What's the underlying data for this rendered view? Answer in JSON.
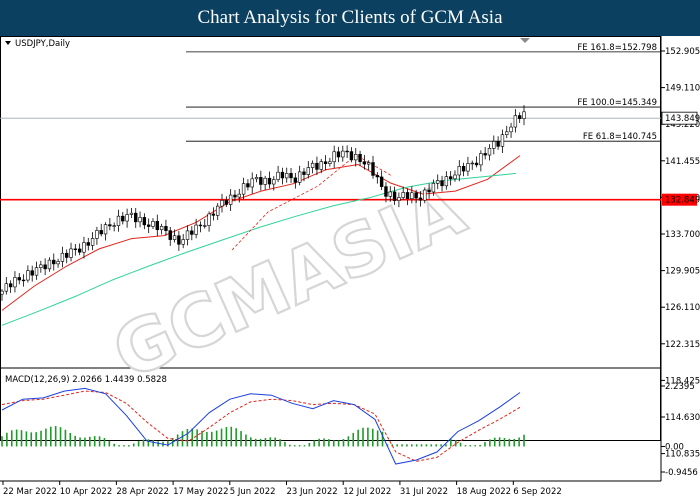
{
  "header": {
    "title": "Chart Analysis for Clients of GCM Asia"
  },
  "chart_data": {
    "type": "candlestick",
    "symbol_label": "USDJPY,Daily",
    "watermark": "GCMASIA",
    "y_ticks": [
      "152.905",
      "149.110",
      "145.220",
      "141.455",
      "137.610",
      "133.700",
      "129.905",
      "126.110",
      "122.315",
      "118.425",
      "114.630",
      "110.835"
    ],
    "x_ticks": [
      "22 Mar 2022",
      "10 Apr 2022",
      "28 Apr 2022",
      "17 May 2022",
      "5 Jun 2022",
      "23 Jun 2022",
      "12 Jul 2022",
      "31 Jul 2022",
      "18 Aug 2022",
      "6 Sep 2022"
    ],
    "ylim": [
      110.4,
      154.4
    ],
    "current_price": {
      "value": 143.849,
      "label": "143.849"
    },
    "support_line": {
      "value": 132.849,
      "label": "132.849",
      "color": "#ff0000"
    },
    "fib_levels": [
      {
        "label": "FE 161.8=152.798",
        "value": 152.798
      },
      {
        "label": "FE 100.0=145.349",
        "value": 145.349
      },
      {
        "label": "FE 61.8=140.745",
        "value": 140.745
      }
    ],
    "closes_sample": [
      120.5,
      121.8,
      122.9,
      123.5,
      124.6,
      125.3,
      126.2,
      127.5,
      128.8,
      130.2,
      130.6,
      130.0,
      129.3,
      128.3,
      127.2,
      128.6,
      130.1,
      131.8,
      133.2,
      134.5,
      135.6,
      135.4,
      136.1,
      135.8,
      136.9,
      137.6,
      138.7,
      139.1,
      138.6,
      136.8,
      134.2,
      132.8,
      133.6,
      133.2,
      134.9,
      135.8,
      136.7,
      137.9,
      139.2,
      140.6,
      143.2,
      144.4
    ],
    "ma_red_sample": [
      117.9,
      121.2,
      123.9,
      126.2,
      127.6,
      128.0,
      129.8,
      132.5,
      134.0,
      135.0,
      136.9,
      137.6,
      135.1,
      133.6,
      134.0,
      135.6,
      138.8
    ],
    "ma_green_sample": [
      115.9,
      117.8,
      119.8,
      122.0,
      123.9,
      125.7,
      127.4,
      129.1,
      130.6,
      132.0,
      133.1,
      134.5,
      135.4,
      135.9,
      136.4
    ],
    "macd": {
      "label": "MACD(12,26,9) 2.0266 1.4439 0.5828",
      "y_ticks": [
        "2.2395",
        "0.00",
        "-0.9456"
      ],
      "ylim": [
        -0.9456,
        2.2395
      ],
      "line_sample": [
        1.35,
        1.75,
        1.8,
        2.05,
        2.15,
        1.95,
        1.15,
        0.2,
        0.05,
        0.5,
        1.25,
        1.75,
        1.95,
        1.9,
        1.6,
        1.4,
        1.7,
        1.55,
        1.0,
        -0.65,
        -0.5,
        -0.2,
        0.55,
        0.95,
        1.45,
        2.0
      ],
      "signal_sample": [
        1.55,
        1.7,
        1.75,
        1.9,
        2.05,
        2.0,
        1.6,
        0.9,
        0.3,
        0.2,
        0.7,
        1.25,
        1.65,
        1.75,
        1.7,
        1.55,
        1.6,
        1.55,
        1.2,
        -0.2,
        -0.55,
        -0.4,
        0.15,
        0.6,
        1.0,
        1.45
      ]
    }
  }
}
